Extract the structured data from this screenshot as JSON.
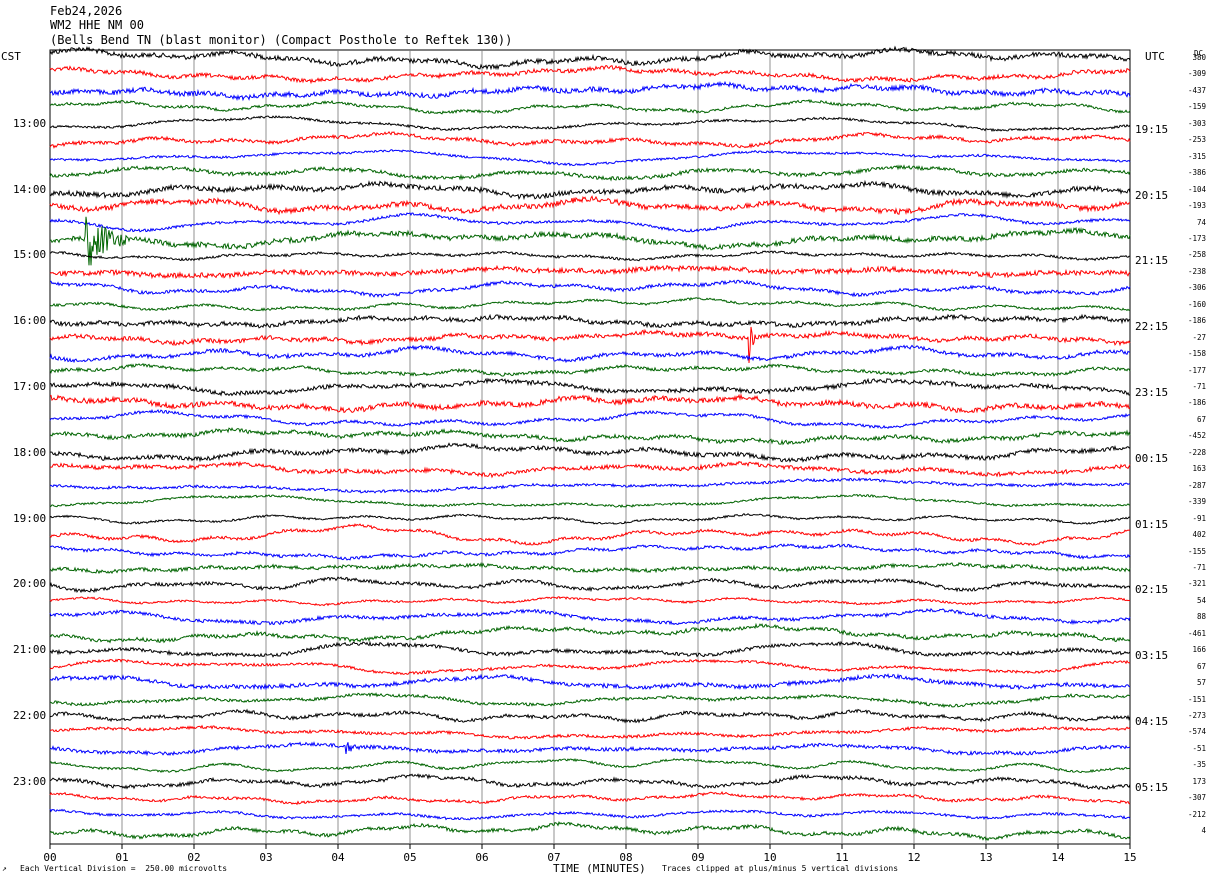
{
  "header": {
    "date": "Feb24,2026",
    "station": "WM2 HHE NM 00",
    "description": "(Bells Bend TN (blast monitor) (Compact Posthole to Reftek 130))"
  },
  "left_timezone": "CST",
  "right_timezone": "UTC",
  "dc_label": "DC",
  "footer": {
    "scale_note": "Each Vertical Division =  250.00 microvolts",
    "clip_note": "Traces clipped at plus/minus 5 vertical divisions",
    "corner_mark": "↗"
  },
  "chart_data": {
    "type": "line",
    "title": "Feb24,2026 WM2 HHE NM 00",
    "xlabel": "TIME (MINUTES)",
    "ylabel": "",
    "x_ticks": [
      "00",
      "01",
      "02",
      "03",
      "04",
      "05",
      "06",
      "07",
      "08",
      "09",
      "10",
      "11",
      "12",
      "13",
      "14",
      "15"
    ],
    "xlim": [
      0,
      15
    ],
    "trace_minutes": 15,
    "left_hour_labels": [
      "13:00",
      "14:00",
      "15:00",
      "16:00",
      "17:00",
      "18:00",
      "19:00",
      "20:00",
      "21:00",
      "22:00",
      "23:00"
    ],
    "right_hour_labels": [
      "19:15",
      "20:15",
      "21:15",
      "22:15",
      "23:15",
      "00:15",
      "01:15",
      "02:15",
      "03:15",
      "04:15",
      "05:15"
    ],
    "trace_colors": [
      "#000000",
      "#ff0000",
      "#0000ff",
      "#006400"
    ],
    "dc_offsets": [
      380,
      -309,
      -437,
      -159,
      -303,
      -253,
      -315,
      -386,
      -104,
      -193,
      74,
      -173,
      -258,
      -238,
      -306,
      -160,
      -186,
      -27,
      -158,
      -177,
      -71,
      -186,
      67,
      -452,
      -228,
      163,
      -287,
      -339,
      -91,
      402,
      -155,
      -71,
      -321,
      54,
      88,
      -461,
      166,
      67,
      57,
      -151,
      -273,
      -574,
      -51,
      -35,
      173,
      -307,
      -212,
      4
    ],
    "events": [
      {
        "trace": 11,
        "minute": 0.5,
        "amplitude": 5,
        "duration": 0.6
      },
      {
        "trace": 17,
        "minute": 9.7,
        "amplitude": 4,
        "duration": 0.1
      },
      {
        "trace": 42,
        "minute": 4.1,
        "amplitude": 1.5,
        "duration": 0.2
      }
    ],
    "scale_microvolts_per_division": 250.0,
    "clip_divisions": 5
  }
}
